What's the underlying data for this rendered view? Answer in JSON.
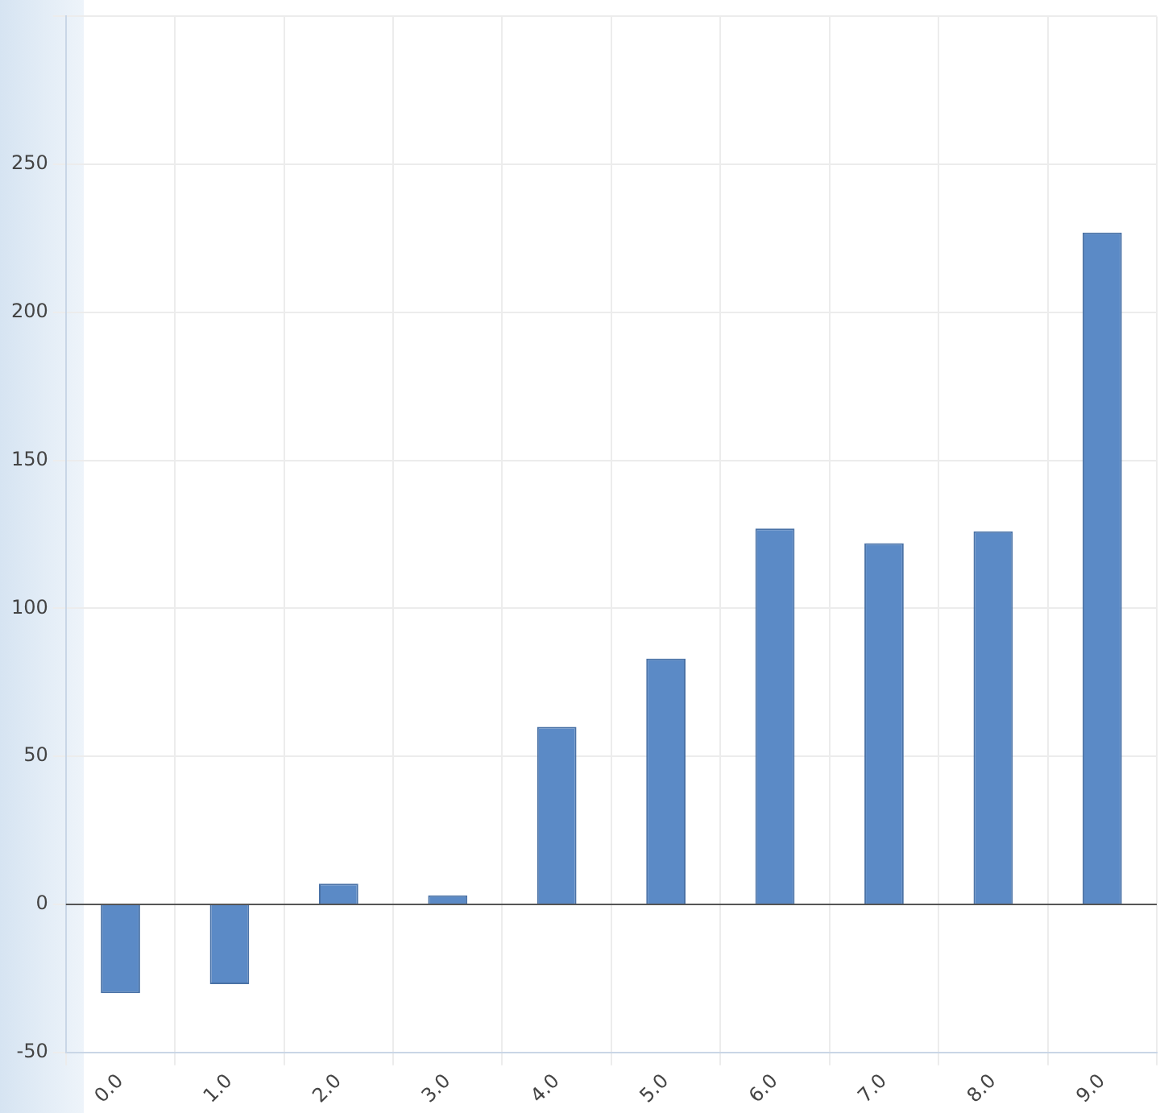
{
  "chart_data": {
    "type": "bar",
    "categories": [
      "0.0",
      "1.0",
      "2.0",
      "3.0",
      "4.0",
      "5.0",
      "6.0",
      "7.0",
      "8.0",
      "9.0"
    ],
    "values": [
      -30,
      -27,
      7,
      3,
      60,
      83,
      127,
      122,
      126,
      227
    ],
    "color": "#5b8ac6",
    "ylim": [
      -50,
      300
    ],
    "yticks": [
      -50,
      0,
      50,
      100,
      150,
      200,
      250,
      {
        "value": 300,
        "label": null
      }
    ],
    "grid": true,
    "legend": false
  }
}
